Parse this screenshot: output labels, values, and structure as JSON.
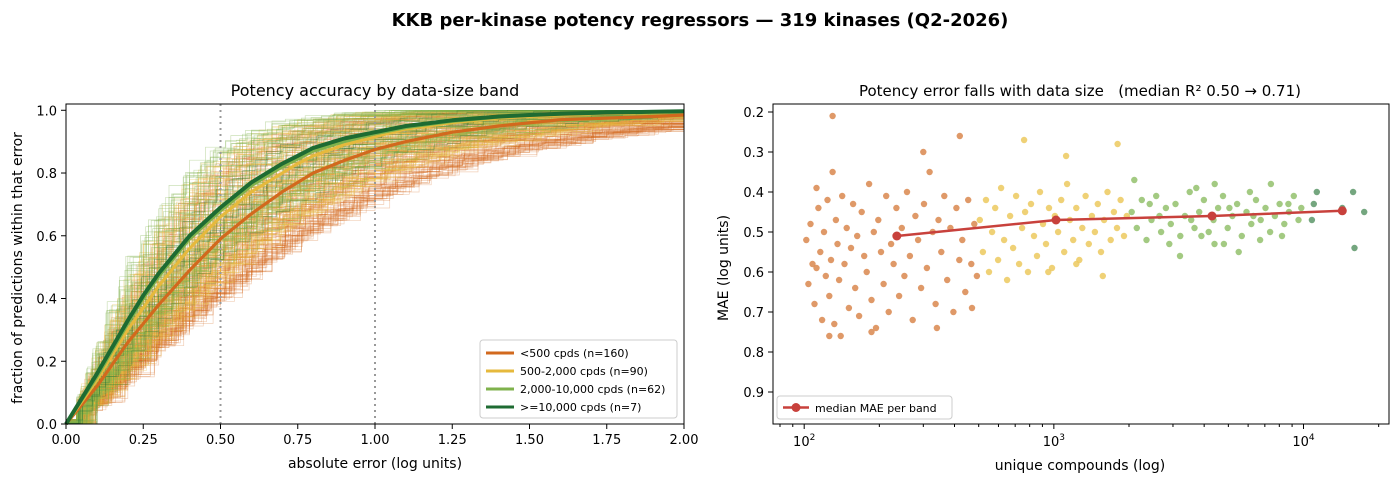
{
  "figure": {
    "suptitle": "KKB per-kinase potency regressors — 319 kinases (Q2-2026)"
  },
  "colors": {
    "lt500": "#d2691e",
    "b500_2000": "#e6b93c",
    "b2000_10000": "#7fb24c",
    "ge10000": "#1e6b32",
    "median_line": "#c8413c",
    "scatter_lt500": "#d9874e",
    "scatter_b500_2000": "#ecc95e",
    "scatter_b2000_10000": "#93c16c",
    "scatter_ge10000": "#5c9668",
    "guide": "#999999"
  },
  "chart_data": [
    {
      "type": "line",
      "title": "Potency accuracy by data-size band",
      "xlabel": "absolute error (log units)",
      "ylabel": "fraction of predictions within that error",
      "xlim": [
        0,
        2.0
      ],
      "ylim": [
        0,
        1.02
      ],
      "xticks": [
        "0.00",
        "0.25",
        "0.50",
        "0.75",
        "1.00",
        "1.25",
        "1.50",
        "1.75",
        "2.00"
      ],
      "yticks": [
        "0.0",
        "0.2",
        "0.4",
        "0.6",
        "0.8",
        "1.0"
      ],
      "reference_lines_x": [
        0.5,
        1.0
      ],
      "grid": false,
      "legend_position": "lower-right",
      "x": [
        0,
        0.1,
        0.2,
        0.25,
        0.3,
        0.4,
        0.5,
        0.6,
        0.7,
        0.75,
        0.8,
        0.9,
        1.0,
        1.1,
        1.25,
        1.4,
        1.5,
        1.6,
        1.75,
        1.9,
        2.0
      ],
      "series": [
        {
          "name": "<500 cpds (n=160)",
          "color_key": "lt500",
          "n_curves": 160,
          "values": [
            0,
            0.12,
            0.26,
            0.32,
            0.38,
            0.49,
            0.59,
            0.67,
            0.74,
            0.77,
            0.8,
            0.84,
            0.875,
            0.9,
            0.93,
            0.95,
            0.96,
            0.97,
            0.975,
            0.98,
            0.985
          ]
        },
        {
          "name": "500-2,000 cpds (n=90)",
          "color_key": "b500_2000",
          "n_curves": 90,
          "values": [
            0,
            0.14,
            0.3,
            0.37,
            0.44,
            0.56,
            0.66,
            0.74,
            0.8,
            0.83,
            0.855,
            0.89,
            0.915,
            0.94,
            0.96,
            0.975,
            0.98,
            0.985,
            0.99,
            0.993,
            0.995
          ]
        },
        {
          "name": "2,000-10,000 cpds (n=62)",
          "color_key": "b2000_10000",
          "n_curves": 62,
          "values": [
            0,
            0.15,
            0.32,
            0.4,
            0.47,
            0.59,
            0.68,
            0.76,
            0.82,
            0.845,
            0.87,
            0.9,
            0.925,
            0.945,
            0.965,
            0.978,
            0.984,
            0.988,
            0.992,
            0.995,
            0.996
          ]
        },
        {
          "name": ">=10,000 cpds (n=7)",
          "color_key": "ge10000",
          "n_curves": 7,
          "values": [
            0,
            0.16,
            0.33,
            0.41,
            0.48,
            0.6,
            0.69,
            0.77,
            0.83,
            0.855,
            0.88,
            0.91,
            0.93,
            0.95,
            0.968,
            0.98,
            0.985,
            0.989,
            0.993,
            0.995,
            0.997
          ]
        }
      ]
    },
    {
      "type": "scatter",
      "title": "Potency error falls with data size   (median R² 0.50 → 0.71)",
      "xlabel": "unique compounds (log)",
      "ylabel": "MAE (log units)",
      "xscale": "log",
      "xlim": [
        75,
        22000
      ],
      "ylim": [
        0.98,
        0.18
      ],
      "y_inverted": true,
      "grid": false,
      "legend_position": "lower-left",
      "xticks": [
        {
          "value": 100,
          "base": "10",
          "exp": "2"
        },
        {
          "value": 1000,
          "base": "10",
          "exp": "3"
        },
        {
          "value": 10000,
          "base": "10",
          "exp": "4"
        }
      ],
      "yticks": [
        "0.2",
        "0.3",
        "0.4",
        "0.5",
        "0.6",
        "0.7",
        "0.8",
        "0.9"
      ],
      "median_series": {
        "name": "median MAE per band",
        "x": [
          235,
          1020,
          4300,
          14300
        ],
        "y": [
          0.51,
          0.47,
          0.46,
          0.447
        ]
      },
      "points": [
        {
          "band": "lt500",
          "xy": [
            [
              102,
              0.52
            ],
            [
              104,
              0.63
            ],
            [
              106,
              0.48
            ],
            [
              108,
              0.58
            ],
            [
              110,
              0.68
            ],
            [
              112,
              0.39
            ],
            [
              114,
              0.44
            ],
            [
              116,
              0.55
            ],
            [
              118,
              0.72
            ],
            [
              120,
              0.5
            ],
            [
              122,
              0.61
            ],
            [
              124,
              0.42
            ],
            [
              126,
              0.66
            ],
            [
              128,
              0.57
            ],
            [
              130,
              0.35
            ],
            [
              132,
              0.73
            ],
            [
              134,
              0.47
            ],
            [
              136,
              0.53
            ],
            [
              138,
              0.62
            ],
            [
              140,
              0.76
            ],
            [
              142,
              0.41
            ],
            [
              145,
              0.58
            ],
            [
              148,
              0.49
            ],
            [
              151,
              0.69
            ],
            [
              154,
              0.54
            ],
            [
              157,
              0.43
            ],
            [
              160,
              0.64
            ],
            [
              163,
              0.51
            ],
            [
              166,
              0.71
            ],
            [
              170,
              0.45
            ],
            [
              174,
              0.56
            ],
            [
              178,
              0.6
            ],
            [
              182,
              0.38
            ],
            [
              186,
              0.67
            ],
            [
              190,
              0.5
            ],
            [
              194,
              0.74
            ],
            [
              198,
              0.47
            ],
            [
              203,
              0.55
            ],
            [
              208,
              0.63
            ],
            [
              213,
              0.41
            ],
            [
              218,
              0.7
            ],
            [
              223,
              0.53
            ],
            [
              228,
              0.58
            ],
            [
              234,
              0.44
            ],
            [
              240,
              0.66
            ],
            [
              246,
              0.49
            ],
            [
              252,
              0.61
            ],
            [
              258,
              0.4
            ],
            [
              265,
              0.56
            ],
            [
              272,
              0.72
            ],
            [
              279,
              0.46
            ],
            [
              286,
              0.52
            ],
            [
              294,
              0.64
            ],
            [
              302,
              0.43
            ],
            [
              310,
              0.59
            ],
            [
              318,
              0.35
            ],
            [
              327,
              0.5
            ],
            [
              336,
              0.68
            ],
            [
              345,
              0.47
            ],
            [
              354,
              0.55
            ],
            [
              364,
              0.41
            ],
            [
              374,
              0.62
            ],
            [
              385,
              0.49
            ],
            [
              396,
              0.7
            ],
            [
              407,
              0.44
            ],
            [
              418,
              0.57
            ],
            [
              430,
              0.52
            ],
            [
              442,
              0.65
            ],
            [
              454,
              0.42
            ],
            [
              467,
              0.58
            ],
            [
              480,
              0.48
            ],
            [
              492,
              0.61
            ],
            [
              130,
              0.21
            ],
            [
              300,
              0.3
            ],
            [
              420,
              0.26
            ],
            [
              112,
              0.59
            ],
            [
              126,
              0.76
            ],
            [
              186,
              0.75
            ],
            [
              340,
              0.74
            ],
            [
              470,
              0.69
            ]
          ]
        },
        {
          "band": "b500_2000",
          "xy": [
            [
              505,
              0.47
            ],
            [
              520,
              0.55
            ],
            [
              535,
              0.42
            ],
            [
              550,
              0.6
            ],
            [
              566,
              0.5
            ],
            [
              582,
              0.44
            ],
            [
              598,
              0.57
            ],
            [
              615,
              0.39
            ],
            [
              632,
              0.52
            ],
            [
              650,
              0.62
            ],
            [
              668,
              0.46
            ],
            [
              687,
              0.54
            ],
            [
              706,
              0.41
            ],
            [
              726,
              0.58
            ],
            [
              746,
              0.49
            ],
            [
              767,
              0.45
            ],
            [
              788,
              0.6
            ],
            [
              810,
              0.43
            ],
            [
              833,
              0.51
            ],
            [
              856,
              0.56
            ],
            [
              880,
              0.4
            ],
            [
              905,
              0.48
            ],
            [
              930,
              0.53
            ],
            [
              956,
              0.44
            ],
            [
              983,
              0.59
            ],
            [
              1010,
              0.46
            ],
            [
              1040,
              0.5
            ],
            [
              1070,
              0.42
            ],
            [
              1100,
              0.55
            ],
            [
              1130,
              0.38
            ],
            [
              1160,
              0.47
            ],
            [
              1195,
              0.52
            ],
            [
              1230,
              0.44
            ],
            [
              1265,
              0.57
            ],
            [
              1300,
              0.49
            ],
            [
              1340,
              0.41
            ],
            [
              1380,
              0.53
            ],
            [
              1420,
              0.46
            ],
            [
              1460,
              0.5
            ],
            [
              1500,
              0.43
            ],
            [
              1545,
              0.55
            ],
            [
              1590,
              0.47
            ],
            [
              1640,
              0.4
            ],
            [
              1690,
              0.52
            ],
            [
              1740,
              0.45
            ],
            [
              1790,
              0.49
            ],
            [
              1850,
              0.42
            ],
            [
              1910,
              0.51
            ],
            [
              1960,
              0.46
            ],
            [
              1120,
              0.31
            ],
            [
              1800,
              0.28
            ],
            [
              760,
              0.27
            ],
            [
              1230,
              0.58
            ],
            [
              1570,
              0.61
            ],
            [
              950,
              0.6
            ]
          ]
        },
        {
          "band": "b2000_10000",
          "xy": [
            [
              2050,
              0.45
            ],
            [
              2150,
              0.49
            ],
            [
              2250,
              0.42
            ],
            [
              2350,
              0.52
            ],
            [
              2460,
              0.47
            ],
            [
              2570,
              0.41
            ],
            [
              2690,
              0.5
            ],
            [
              2810,
              0.44
            ],
            [
              2940,
              0.48
            ],
            [
              3070,
              0.43
            ],
            [
              3210,
              0.51
            ],
            [
              3350,
              0.46
            ],
            [
              3500,
              0.4
            ],
            [
              3660,
              0.49
            ],
            [
              3820,
              0.45
            ],
            [
              3990,
              0.42
            ],
            [
              4170,
              0.5
            ],
            [
              4360,
              0.47
            ],
            [
              4550,
              0.44
            ],
            [
              4760,
              0.41
            ],
            [
              4970,
              0.49
            ],
            [
              5190,
              0.46
            ],
            [
              5420,
              0.43
            ],
            [
              5660,
              0.51
            ],
            [
              5910,
              0.45
            ],
            [
              6180,
              0.48
            ],
            [
              6450,
              0.42
            ],
            [
              6740,
              0.47
            ],
            [
              7040,
              0.44
            ],
            [
              7350,
              0.5
            ],
            [
              7680,
              0.46
            ],
            [
              8020,
              0.43
            ],
            [
              8380,
              0.48
            ],
            [
              8750,
              0.45
            ],
            [
              9140,
              0.41
            ],
            [
              9550,
              0.47
            ],
            [
              2100,
              0.37
            ],
            [
              3720,
              0.39
            ],
            [
              4410,
              0.38
            ],
            [
              6100,
              0.4
            ],
            [
              7400,
              0.38
            ],
            [
              2900,
              0.53
            ],
            [
              3200,
              0.56
            ],
            [
              4800,
              0.53
            ],
            [
              5500,
              0.55
            ],
            [
              6700,
              0.52
            ],
            [
              8200,
              0.51
            ],
            [
              2420,
              0.43
            ],
            [
              3550,
              0.47
            ],
            [
              5050,
              0.44
            ],
            [
              6300,
              0.46
            ],
            [
              8700,
              0.43
            ],
            [
              9800,
              0.44
            ],
            [
              2650,
              0.46
            ],
            [
              3900,
              0.51
            ],
            [
              4400,
              0.53
            ]
          ]
        },
        {
          "band": "ge10000",
          "xy": [
            [
              10800,
              0.47
            ],
            [
              11300,
              0.4
            ],
            [
              15800,
              0.4
            ],
            [
              16000,
              0.54
            ],
            [
              17500,
              0.45
            ],
            [
              14300,
              0.44
            ],
            [
              11000,
              0.43
            ]
          ]
        }
      ]
    }
  ]
}
